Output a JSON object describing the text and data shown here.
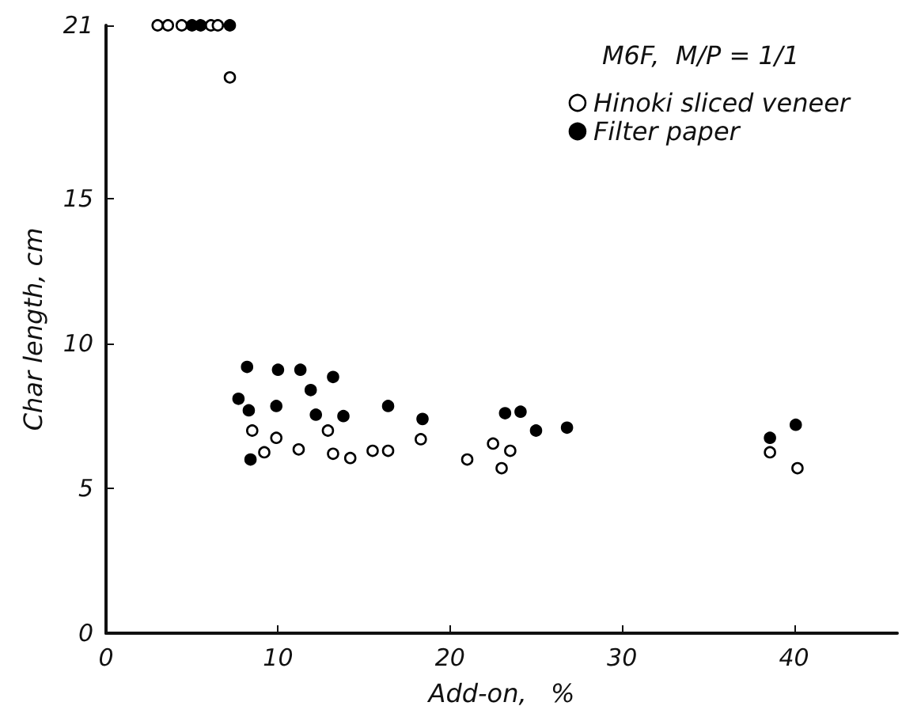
{
  "chart_data": {
    "type": "scatter",
    "legend_title": "M6F,  M/P = 1/1",
    "xlabel": "Add-on,   %",
    "ylabel": "Char length, cm",
    "xlim": [
      0,
      46
    ],
    "xticks": [
      0,
      10,
      20,
      30,
      40
    ],
    "ylim": [
      0,
      21
    ],
    "yticks": [
      0,
      5,
      10,
      15,
      21
    ],
    "grid": false,
    "legend": "top right",
    "marker": "circle",
    "series": [
      {
        "name": "Hinoki sliced veneer",
        "color": "#ffffff",
        "x": [
          3.0,
          3.6,
          4.4,
          6.1,
          6.5,
          7.2,
          8.5,
          9.2,
          9.9,
          11.2,
          12.9,
          13.2,
          14.2,
          15.5,
          16.4,
          18.3,
          21.0,
          22.5,
          23.0,
          23.5,
          38.6,
          40.2
        ],
        "values": [
          21,
          21,
          21,
          21,
          21,
          19.2,
          7.0,
          6.25,
          6.75,
          6.35,
          7.0,
          6.2,
          6.05,
          6.3,
          6.3,
          6.7,
          6.0,
          6.55,
          5.7,
          6.3,
          6.25,
          5.7
        ]
      },
      {
        "name": "Filter paper",
        "color": "#000000",
        "x": [
          5.0,
          5.5,
          7.2,
          7.7,
          8.2,
          8.3,
          8.4,
          10.0,
          9.9,
          11.3,
          11.9,
          12.2,
          13.2,
          13.8,
          16.4,
          18.4,
          23.2,
          24.1,
          25.0,
          26.8,
          38.6,
          40.1
        ],
        "values": [
          21,
          21,
          21,
          8.1,
          9.2,
          7.7,
          6.0,
          9.1,
          7.85,
          9.1,
          8.4,
          7.55,
          8.85,
          7.5,
          7.85,
          7.4,
          7.6,
          7.65,
          7.0,
          7.1,
          6.75,
          7.2
        ]
      }
    ]
  }
}
